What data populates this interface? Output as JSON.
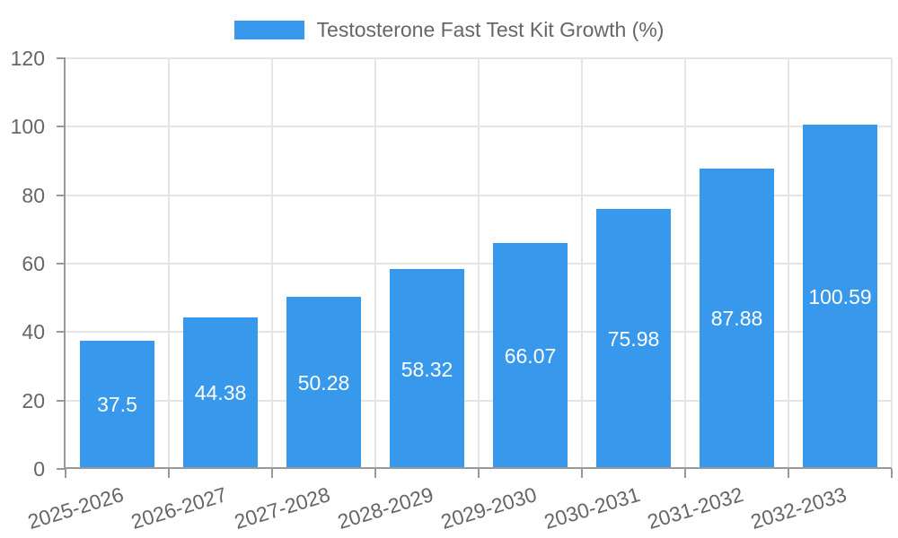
{
  "legend": {
    "label": "Testosterone Fast Test Kit Growth (%)"
  },
  "colors": {
    "bar": "#3899ec",
    "grid": "#e5e5e5",
    "axis": "#999999",
    "tick_text": "#666666",
    "legend_text": "#666666",
    "bar_label_text": "#ffffff",
    "background": "#ffffff"
  },
  "chart_data": {
    "type": "bar",
    "title": "Testosterone Fast Test Kit Growth (%)",
    "series_name": "Testosterone Fast Test Kit Growth (%)",
    "categories": [
      "2025-2026",
      "2026-2027",
      "2027-2028",
      "2028-2029",
      "2029-2030",
      "2030-2031",
      "2031-2032",
      "2032-2033"
    ],
    "values": [
      37.5,
      44.38,
      50.28,
      58.32,
      66.07,
      75.98,
      87.88,
      100.59
    ],
    "value_labels": [
      "37.5",
      "44.38",
      "50.28",
      "58.32",
      "66.07",
      "75.98",
      "87.88",
      "100.59"
    ],
    "xlabel": "",
    "ylabel": "",
    "ylim": [
      0,
      120
    ],
    "yticks": [
      0,
      20,
      40,
      60,
      80,
      100,
      120
    ],
    "grid": true,
    "legend_position": "top",
    "value_label_position": "center",
    "value_label_color": "#ffffff",
    "x_label_rotation_deg": 17
  }
}
